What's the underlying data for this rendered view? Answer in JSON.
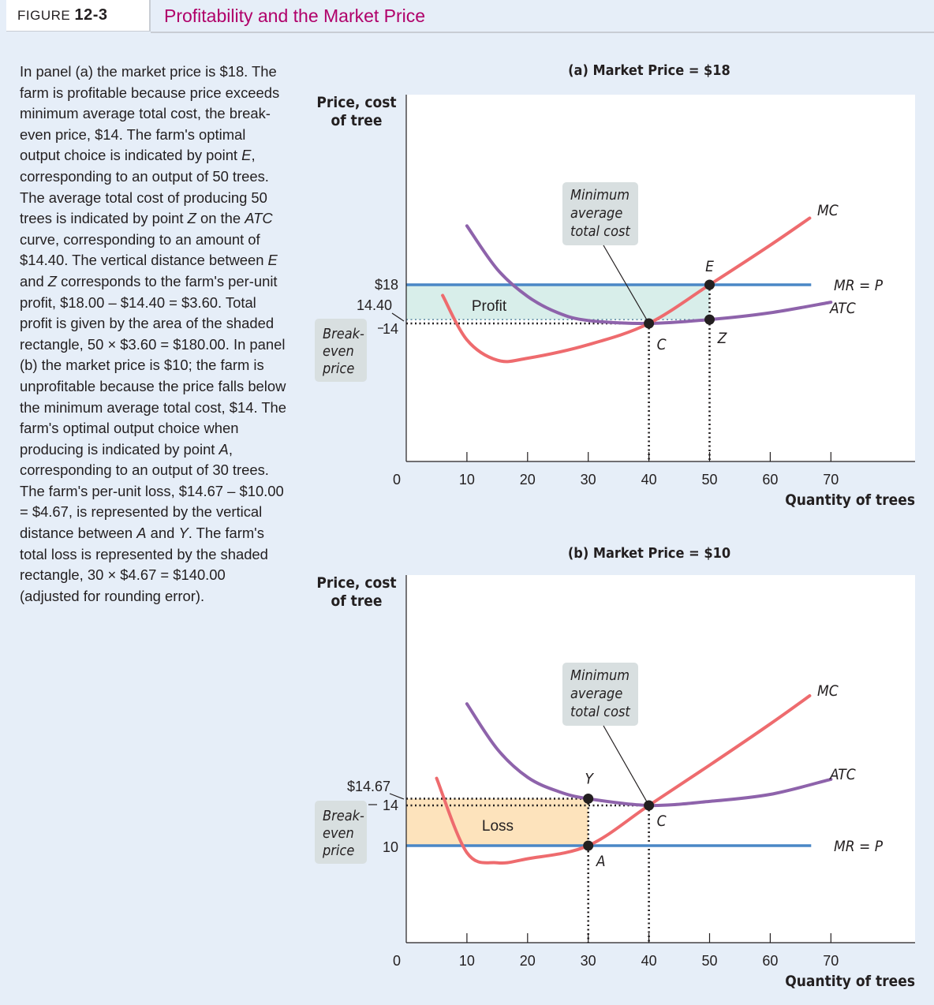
{
  "header": {
    "figure_word": "FIGURE",
    "figure_number": "12-3",
    "title": "Profitability and the Market Price"
  },
  "caption": {
    "parts": [
      {
        "t": "In panel (a) the market price is $18. The farm is profitable because price exceeds minimum average total cost, the break-even price, $14. The farm's optimal output choice is indicated by point "
      },
      {
        "t": "E",
        "i": true
      },
      {
        "t": ", corresponding to an output of 50 trees. The average total cost of producing 50 trees is indicated by point "
      },
      {
        "t": "Z",
        "i": true
      },
      {
        "t": " on the "
      },
      {
        "t": "ATC",
        "i": true
      },
      {
        "t": " curve, corresponding to an amount of $14.40. The vertical distance between "
      },
      {
        "t": "E",
        "i": true
      },
      {
        "t": " and "
      },
      {
        "t": "Z",
        "i": true
      },
      {
        "t": " corresponds to the farm's per-unit profit, $18.00 – $14.40 = $3.60. Total profit is given by the area of the shaded rectangle, 50 × $3.60 = $180.00. In panel (b) the market price is $10; the farm is unprofitable because the price falls below the minimum average total cost, $14. The farm's optimal output choice when producing is indicated by point "
      },
      {
        "t": "A",
        "i": true
      },
      {
        "t": ", corresponding to an output of 30 trees. The farm's per-unit loss, $14.67 – $10.00 = $4.67, is represented by the vertical distance between "
      },
      {
        "t": "A",
        "i": true
      },
      {
        "t": " and "
      },
      {
        "t": "Y",
        "i": true
      },
      {
        "t": ". The farm's total loss is represented by the shaded rectangle, 30 × $4.67 = $140.00 (adjusted for rounding error)."
      }
    ]
  },
  "colors": {
    "mc": "#ee6b6e",
    "atc": "#8e63ab",
    "price_line": "#4a87c6",
    "profit_fill": "#d8eeea",
    "loss_fill": "#fde3bc",
    "callout_fill": "#d8dfe0",
    "point": "#231f20",
    "title_accent": "#b0006a"
  },
  "chart_data": [
    {
      "type": "line",
      "title": "(a) Market Price = $18",
      "xlabel": "Quantity of trees",
      "ylabel": "Price, cost of tree",
      "x_ticks": [
        10,
        20,
        30,
        40,
        50,
        60,
        70
      ],
      "origin_label": "0",
      "xlim": [
        0,
        83
      ],
      "series": [
        {
          "name": "MC",
          "points": [
            [
              6,
              16.9
            ],
            [
              10,
              12.3
            ],
            [
              15,
              10.2
            ],
            [
              20,
              10.4
            ],
            [
              30,
              11.8
            ],
            [
              40,
              14
            ],
            [
              50,
              18
            ],
            [
              60,
              22.1
            ],
            [
              66.5,
              24.9
            ]
          ]
        },
        {
          "name": "ATC",
          "points": [
            [
              10,
              24.1
            ],
            [
              15,
              19.6
            ],
            [
              20,
              16.8
            ],
            [
              25,
              15.1
            ],
            [
              30,
              14.3
            ],
            [
              40,
              14
            ],
            [
              50,
              14.4
            ],
            [
              60,
              15.1
            ],
            [
              70,
              16.2
            ]
          ]
        },
        {
          "name": "MR = P",
          "points": [
            [
              0,
              18
            ],
            [
              70,
              18
            ]
          ]
        }
      ],
      "price_labels": {
        "price": "$18",
        "atc_at_q": "14.40",
        "break_even": "14"
      },
      "callout": {
        "text": [
          "Minimum",
          "average",
          "total cost"
        ]
      },
      "break_even_box": [
        "Break-",
        "even",
        "price"
      ],
      "shaded_region": {
        "label": "Profit",
        "x": [
          0,
          50
        ],
        "y": [
          14.4,
          18
        ]
      },
      "points": [
        {
          "label": "E",
          "x": 50,
          "y": 18
        },
        {
          "label": "Z",
          "x": 50,
          "y": 14.4
        },
        {
          "label": "C",
          "x": 40,
          "y": 14
        }
      ]
    },
    {
      "type": "line",
      "title": "(b) Market Price = $10",
      "xlabel": "Quantity of trees",
      "ylabel": "Price, cost of tree",
      "x_ticks": [
        10,
        20,
        30,
        40,
        50,
        60,
        70
      ],
      "origin_label": "0",
      "xlim": [
        0,
        83
      ],
      "series": [
        {
          "name": "MC",
          "points": [
            [
              5,
              16.7
            ],
            [
              10,
              9.3
            ],
            [
              15,
              8.3
            ],
            [
              20,
              8.7
            ],
            [
              30,
              10
            ],
            [
              40,
              14
            ],
            [
              50,
              18
            ],
            [
              60,
              22.1
            ],
            [
              66.5,
              24.9
            ]
          ]
        },
        {
          "name": "ATC",
          "points": [
            [
              10,
              24.1
            ],
            [
              15,
              19.6
            ],
            [
              20,
              16.8
            ],
            [
              25,
              15.4
            ],
            [
              30,
              14.67
            ],
            [
              40,
              14
            ],
            [
              50,
              14.4
            ],
            [
              60,
              15.1
            ],
            [
              70,
              16.6
            ]
          ]
        },
        {
          "name": "MR = P",
          "points": [
            [
              0,
              10
            ],
            [
              70,
              10
            ]
          ]
        }
      ],
      "price_labels": {
        "price": "10",
        "atc_at_q": "$14.67",
        "break_even": "14"
      },
      "callout": {
        "text": [
          "Minimum",
          "average",
          "total cost"
        ]
      },
      "break_even_box": [
        "Break-",
        "even",
        "price"
      ],
      "shaded_region": {
        "label": "Loss",
        "x": [
          0,
          30
        ],
        "y": [
          10,
          14.67
        ]
      },
      "points": [
        {
          "label": "Y",
          "x": 30,
          "y": 14.67
        },
        {
          "label": "A",
          "x": 30,
          "y": 10
        },
        {
          "label": "C",
          "x": 40,
          "y": 14
        }
      ]
    }
  ]
}
